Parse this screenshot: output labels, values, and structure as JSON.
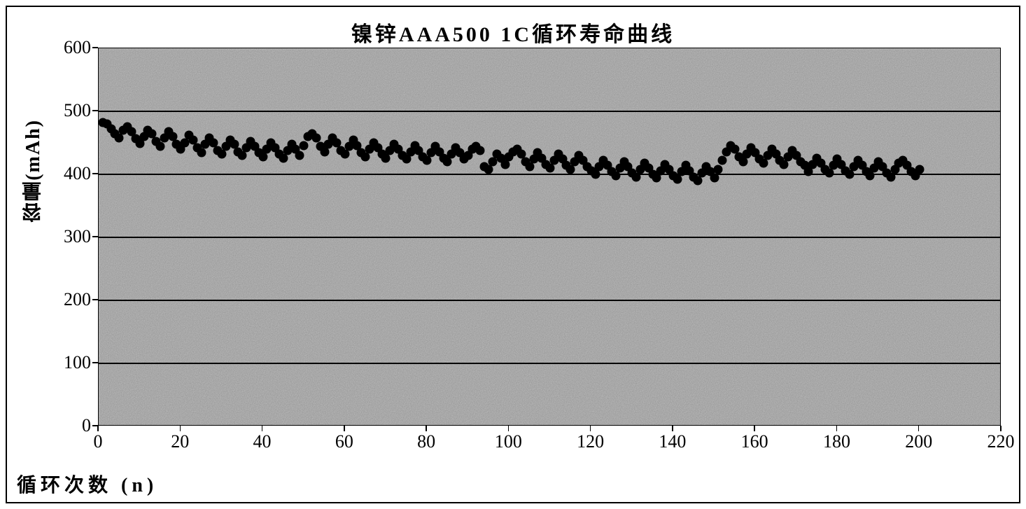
{
  "chart": {
    "type": "scatter",
    "title": "镍锌AAA500 1C循环寿命曲线",
    "title_fontsize": 30,
    "xlabel": "循环次数 (n)",
    "ylabel": "容量(mAh)",
    "label_fontsize": 28,
    "tick_fontsize": 26,
    "xlim": [
      0,
      220
    ],
    "ylim": [
      0,
      600
    ],
    "xtick_step": 20,
    "ytick_step": 100,
    "xticks": [
      0,
      20,
      40,
      60,
      80,
      100,
      120,
      140,
      160,
      180,
      200,
      220
    ],
    "yticks": [
      0,
      100,
      200,
      300,
      400,
      500,
      600
    ],
    "plot_bg_color": "#c0c0c0",
    "grid_color": "#000000",
    "frame_color": "#000000",
    "text_color": "#000000",
    "marker_color": "#000000",
    "marker_size": 13,
    "data": {
      "x": [
        1,
        2,
        3,
        4,
        5,
        6,
        7,
        8,
        9,
        10,
        11,
        12,
        13,
        14,
        15,
        16,
        17,
        18,
        19,
        20,
        21,
        22,
        23,
        24,
        25,
        26,
        27,
        28,
        29,
        30,
        31,
        32,
        33,
        34,
        35,
        36,
        37,
        38,
        39,
        40,
        41,
        42,
        43,
        44,
        45,
        46,
        47,
        48,
        49,
        50,
        51,
        52,
        53,
        54,
        55,
        56,
        57,
        58,
        59,
        60,
        61,
        62,
        63,
        64,
        65,
        66,
        67,
        68,
        69,
        70,
        71,
        72,
        73,
        74,
        75,
        76,
        77,
        78,
        79,
        80,
        81,
        82,
        83,
        84,
        85,
        86,
        87,
        88,
        89,
        90,
        91,
        92,
        93,
        94,
        95,
        96,
        97,
        98,
        99,
        100,
        101,
        102,
        103,
        104,
        105,
        106,
        107,
        108,
        109,
        110,
        111,
        112,
        113,
        114,
        115,
        116,
        117,
        118,
        119,
        120,
        121,
        122,
        123,
        124,
        125,
        126,
        127,
        128,
        129,
        130,
        131,
        132,
        133,
        134,
        135,
        136,
        137,
        138,
        139,
        140,
        141,
        142,
        143,
        144,
        145,
        146,
        147,
        148,
        149,
        150,
        151,
        152,
        153,
        154,
        155,
        156,
        157,
        158,
        159,
        160,
        161,
        162,
        163,
        164,
        165,
        166,
        167,
        168,
        169,
        170,
        171,
        172,
        173,
        174,
        175,
        176,
        177,
        178,
        179,
        180,
        181,
        182,
        183,
        184,
        185,
        186,
        187,
        188,
        189,
        190,
        191,
        192,
        193,
        194,
        195,
        196,
        197,
        198,
        199,
        200
      ],
      "y": [
        482,
        480,
        472,
        465,
        458,
        470,
        476,
        468,
        457,
        449,
        460,
        470,
        465,
        452,
        445,
        458,
        468,
        460,
        448,
        440,
        450,
        462,
        454,
        442,
        435,
        448,
        458,
        450,
        438,
        432,
        445,
        455,
        448,
        436,
        430,
        442,
        452,
        445,
        434,
        428,
        440,
        450,
        442,
        432,
        426,
        438,
        448,
        440,
        430,
        446,
        460,
        465,
        458,
        445,
        436,
        448,
        458,
        450,
        438,
        432,
        444,
        454,
        446,
        435,
        428,
        440,
        450,
        442,
        432,
        426,
        438,
        448,
        440,
        430,
        424,
        436,
        446,
        438,
        428,
        422,
        434,
        444,
        436,
        426,
        420,
        432,
        442,
        434,
        424,
        430,
        440,
        445,
        438,
        412,
        408,
        420,
        432,
        426,
        416,
        428,
        436,
        440,
        432,
        420,
        412,
        424,
        434,
        426,
        416,
        410,
        422,
        432,
        424,
        414,
        408,
        420,
        430,
        422,
        412,
        406,
        400,
        412,
        422,
        414,
        404,
        398,
        410,
        420,
        412,
        402,
        396,
        408,
        418,
        410,
        400,
        394,
        406,
        416,
        408,
        398,
        392,
        404,
        414,
        406,
        396,
        390,
        402,
        412,
        404,
        394,
        408,
        422,
        436,
        446,
        440,
        428,
        420,
        432,
        442,
        434,
        424,
        418,
        430,
        440,
        432,
        422,
        416,
        428,
        438,
        430,
        420,
        414,
        404,
        416,
        426,
        418,
        408,
        402,
        414,
        424,
        416,
        406,
        400,
        412,
        422,
        414,
        404,
        398,
        410,
        420,
        412,
        402,
        396,
        408,
        418,
        422,
        414,
        404,
        398,
        408
      ]
    }
  }
}
